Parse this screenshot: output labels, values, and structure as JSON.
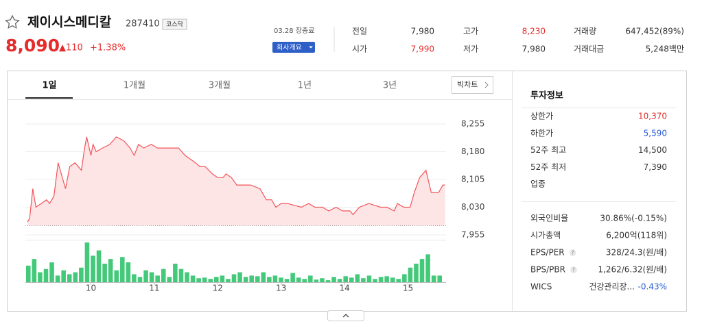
{
  "header": {
    "name": "제이시스메디칼",
    "code": "287410",
    "market": "코스닥",
    "price": "8,090",
    "change": "▲110",
    "change_rate": "+1.38%",
    "status": "03.28 장종료",
    "company_button": "회사개요"
  },
  "summary": [
    [
      {
        "label": "전일",
        "value": "7,980",
        "color": "#333333"
      },
      {
        "label": "고가",
        "value": "8,230",
        "color": "#e52b2b"
      },
      {
        "label": "거래량",
        "value": "647,452(89%)",
        "color": "#333333"
      }
    ],
    [
      {
        "label": "시가",
        "value": "7,990",
        "color": "#e52b2b"
      },
      {
        "label": "저가",
        "value": "7,980",
        "color": "#333333"
      },
      {
        "label": "거래대금",
        "value": "5,248백만",
        "color": "#333333"
      }
    ]
  ],
  "tabs": {
    "items": [
      "1일",
      "1개월",
      "3개월",
      "1년",
      "3년"
    ],
    "selected": 0,
    "big_chart": "빅차트"
  },
  "chart_data": {
    "type": "line",
    "x": [
      0,
      2,
      5,
      8,
      13,
      18,
      21,
      25,
      29,
      31,
      36,
      40,
      45,
      51,
      54,
      56,
      60,
      62,
      65,
      71,
      78,
      84,
      91,
      97,
      101,
      105,
      110,
      117,
      123,
      143,
      149,
      154,
      159,
      163,
      168,
      175,
      180,
      185,
      188,
      193,
      198,
      204,
      211,
      220,
      226,
      231,
      235,
      240,
      246,
      259,
      266,
      272,
      279,
      285,
      292,
      298,
      305,
      308,
      314,
      323,
      334,
      340,
      347,
      350,
      356,
      362,
      366,
      371,
      377,
      382,
      389,
      393,
      395
    ],
    "values": [
      7990,
      8000,
      8080,
      8030,
      8040,
      8050,
      8040,
      8060,
      8150,
      8130,
      8080,
      8140,
      8150,
      8130,
      8190,
      8220,
      8170,
      8200,
      8180,
      8190,
      8200,
      8220,
      8210,
      8190,
      8170,
      8200,
      8190,
      8200,
      8190,
      8190,
      8170,
      8160,
      8150,
      8140,
      8140,
      8120,
      8110,
      8110,
      8120,
      8110,
      8090,
      8090,
      8090,
      8080,
      8050,
      8050,
      8030,
      8040,
      8040,
      8030,
      8040,
      8030,
      8030,
      8020,
      8030,
      8020,
      8020,
      8010,
      8030,
      8040,
      8030,
      8030,
      8020,
      8040,
      8030,
      8030,
      8070,
      8110,
      8130,
      8070,
      8070,
      8090,
      8090
    ],
    "xlim": [
      -2,
      396
    ],
    "xticks": [
      {
        "value": 60,
        "label": "10"
      },
      {
        "value": 120,
        "label": "11"
      },
      {
        "value": 180,
        "label": "12"
      },
      {
        "value": 240,
        "label": "13"
      },
      {
        "value": 300,
        "label": "14"
      },
      {
        "value": 360,
        "label": "15"
      }
    ],
    "ylim": [
      7955,
      8255
    ],
    "yticks": [
      {
        "value": 8255,
        "label": "8,255"
      },
      {
        "value": 8180,
        "label": "8,180"
      },
      {
        "value": 8105,
        "label": "8,105"
      },
      {
        "value": 8030,
        "label": "8,030"
      },
      {
        "value": 7955,
        "label": "7,955"
      }
    ],
    "reference": 7980,
    "color": "#f0555a",
    "fill": "#fde4e5",
    "grid": true,
    "volume": {
      "color": "#44c97a",
      "ylim": [
        0,
        62
      ],
      "values": [
        25,
        35,
        15,
        20,
        30,
        10,
        18,
        12,
        15,
        22,
        60,
        40,
        48,
        28,
        35,
        18,
        38,
        30,
        12,
        8,
        18,
        15,
        10,
        20,
        8,
        28,
        20,
        15,
        10,
        6,
        7,
        5,
        8,
        10,
        5,
        12,
        15,
        8,
        10,
        9,
        15,
        8,
        10,
        7,
        5,
        14,
        7,
        5,
        10,
        4,
        6,
        3,
        8,
        5,
        9,
        7,
        12,
        6,
        10,
        5,
        8,
        9,
        7,
        5,
        12,
        22,
        28,
        35,
        42,
        10,
        10
      ]
    }
  },
  "invest": {
    "title": "투자정보",
    "group1": [
      {
        "label": "상한가",
        "value": "10,370",
        "color": "#e52b2b"
      },
      {
        "label": "하한가",
        "value": "5,590",
        "color": "#2b5fd6"
      },
      {
        "label": "52주 최고",
        "value": "14,500",
        "color": "#333333"
      },
      {
        "label": "52주 최저",
        "value": "7,390",
        "color": "#333333"
      },
      {
        "label": "업종",
        "value": "",
        "color": "#333333"
      }
    ],
    "group2": [
      {
        "label": "외국인비율",
        "value": "30.86%(-0.15%)",
        "color": "#333333"
      },
      {
        "label": "시가총액",
        "value": "6,200억(118위)",
        "color": "#333333"
      },
      {
        "label": "EPS/PER",
        "help": "?",
        "value": "328/24.3(원/배)",
        "color": "#333333"
      },
      {
        "label": "BPS/PBR",
        "help": "?",
        "value": "1,262/6.32(원/배)",
        "color": "#333333"
      },
      {
        "label": "WICS",
        "value": "건강관리장...",
        "color": "#333333",
        "value2": "-0.43%",
        "color2": "#2b5fd6"
      }
    ]
  }
}
